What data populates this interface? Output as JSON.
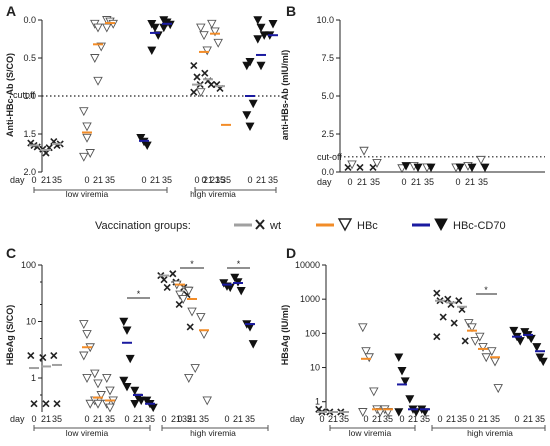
{
  "chart_data": [
    {
      "panel": "A",
      "type": "scatter",
      "ylabel": "Anti-HBc-Ab (S/CO)",
      "y_reversed": true,
      "ylim": [
        0,
        2
      ],
      "yticks": [
        "0.0",
        "0.5",
        "1.0",
        "1.5",
        "2.0"
      ],
      "reference_line": {
        "value": 1.0,
        "label": "cutoff"
      },
      "x_prefix": "day",
      "x_ticks": [
        "0",
        "21",
        "35"
      ],
      "groups": [
        "low viremia",
        "high viremia"
      ],
      "series": [
        {
          "group": "low viremia",
          "vaccine": "wt",
          "day0": [
            1.62,
            1.65,
            1.67
          ],
          "day21": [
            1.7,
            1.75,
            1.68
          ],
          "day35": [
            1.6,
            1.65,
            1.63
          ],
          "mean": [
            1.65,
            1.71,
            1.63
          ]
        },
        {
          "group": "low viremia",
          "vaccine": "HBc",
          "day0": [
            1.2,
            1.55,
            1.75,
            1.8,
            1.4
          ],
          "day21": [
            0.05,
            0.1,
            0.35,
            0.5,
            0.8
          ],
          "day35": [
            0.0,
            0.02,
            0.05,
            0.1
          ],
          "mean": [
            1.48,
            0.32,
            0.04
          ]
        },
        {
          "group": "low viremia",
          "vaccine": "HBc-CD70",
          "day0": [
            1.55,
            1.6,
            1.65
          ],
          "day21": [
            0.05,
            0.1,
            0.2,
            0.4
          ],
          "day35": [
            0.0,
            0.03,
            0.06,
            0.1
          ],
          "mean": [
            1.59,
            0.17,
            0.05
          ]
        },
        {
          "group": "high viremia",
          "vaccine": "wt",
          "day0": [
            0.6,
            0.75,
            0.85,
            0.95
          ],
          "day21": [
            0.7,
            0.8,
            0.85
          ],
          "day35": [
            0.85,
            0.9
          ],
          "mean": [
            0.85,
            0.78,
            0.87
          ]
        },
        {
          "group": "high viremia",
          "vaccine": "HBc",
          "day0": [
            0.1,
            0.2,
            0.4,
            0.95
          ],
          "day21": [
            0.05,
            0.15,
            0.3
          ],
          "day35": [],
          "mean": [
            0.42,
            0.18,
            1.38
          ]
        },
        {
          "group": "high viremia",
          "vaccine": "HBc-CD70",
          "day0": [
            0.6,
            0.55,
            1.1,
            1.25,
            1.4
          ],
          "day21": [
            0.0,
            0.1,
            0.2,
            0.25,
            0.6
          ],
          "day35": [
            0.2,
            0.05
          ],
          "mean": [
            1.0,
            0.46,
            0.2
          ]
        }
      ]
    },
    {
      "panel": "B",
      "type": "scatter",
      "ylabel": "anti-HBs-Ab (mIU/ml)",
      "ylim": [
        0,
        10
      ],
      "yticks": [
        "0.0",
        "2.5",
        "5.0",
        "7.5",
        "10.0"
      ],
      "reference_line": {
        "value": 1.0,
        "label": "cut-off"
      },
      "x_prefix": "day",
      "x_ticks": [
        "0",
        "21",
        "35"
      ],
      "points": [
        0.1,
        0.1,
        0.1,
        0.05,
        0.2,
        0.1,
        0.1,
        0.2,
        0.6,
        0.3,
        1.2,
        0.4,
        0.2,
        0.1,
        0.1,
        0.1,
        0.1,
        0.1
      ]
    },
    {
      "panel": "C",
      "type": "scatter",
      "ylabel": "HBeAg (S/CO)",
      "log_scale": true,
      "ylim": [
        0.25,
        100
      ],
      "yticks": [
        "100",
        "10",
        "1"
      ],
      "x_prefix": "day",
      "x_ticks": [
        "0",
        "21",
        "35"
      ],
      "groups": [
        "low viremia",
        "high viremia"
      ],
      "significance_label": "*",
      "series": [
        {
          "group": "low viremia",
          "vaccine": "wt",
          "day0": [
            2.5,
            0.35
          ],
          "day21": [
            2.3,
            0.35
          ],
          "day35": [
            2.5,
            0.35
          ],
          "mean": [
            1.5,
            1.6,
            1.7
          ]
        },
        {
          "group": "low viremia",
          "vaccine": "HBc",
          "day0": [
            9,
            6,
            3.5,
            2.5,
            1.0,
            0.35
          ],
          "day21": [
            1.2,
            0.8,
            0.5,
            0.4,
            0.35
          ],
          "day35": [
            1.0,
            0.6,
            0.4,
            0.35,
            0.3
          ],
          "mean": [
            3.5,
            0.45,
            0.4
          ]
        },
        {
          "group": "low viremia",
          "vaccine": "HBc-CD70",
          "day0": [
            10,
            7,
            2.2,
            0.9,
            0.7
          ],
          "day21": [
            0.6,
            0.45,
            0.4,
            0.35
          ],
          "day35": [
            0.4,
            0.35,
            0.3
          ],
          "mean": [
            4.2,
            0.5,
            0.35
          ]
        },
        {
          "group": "high viremia",
          "vaccine": "wt",
          "day0": [
            65,
            55,
            40
          ],
          "day21": [
            70,
            50,
            20
          ],
          "day35": [
            40,
            30,
            8
          ],
          "mean": [
            65,
            50,
            40
          ]
        },
        {
          "group": "high viremia",
          "vaccine": "HBc",
          "day0": [
            45,
            30,
            25
          ],
          "day21": [
            35,
            15,
            1.5,
            1.0
          ],
          "day35": [
            12,
            6,
            0.4
          ],
          "mean": [
            45,
            25,
            7
          ]
        },
        {
          "group": "high viremia",
          "vaccine": "HBc-CD70",
          "day0": [
            48,
            42,
            40
          ],
          "day21": [
            60,
            50,
            35
          ],
          "day35": [
            9,
            8,
            4
          ],
          "mean": [
            45,
            48,
            9
          ]
        }
      ]
    },
    {
      "panel": "D",
      "type": "scatter",
      "ylabel": "HBsAg (IU/ml)",
      "log_scale": true,
      "ylim": [
        0.5,
        10000
      ],
      "yticks": [
        "10000",
        "1000",
        "100",
        "10",
        "1"
      ],
      "x_prefix": "day",
      "x_ticks": [
        "0",
        "21",
        "35"
      ],
      "groups": [
        "low viremia",
        "high viremia"
      ],
      "significance_label": "*",
      "series": [
        {
          "group": "low viremia",
          "vaccine": "wt",
          "day0": [
            0.6,
            0.5
          ],
          "day21": [
            0.5
          ],
          "day35": [
            0.5
          ],
          "mean": [
            0.5,
            0.5,
            0.5
          ]
        },
        {
          "group": "low viremia",
          "vaccine": "HBc",
          "day0": [
            150,
            30,
            20,
            0.5
          ],
          "day21": [
            2.0,
            0.6,
            0.5
          ],
          "day35": [
            0.6,
            0.5
          ],
          "mean": [
            18,
            0.6,
            0.6
          ]
        },
        {
          "group": "low viremia",
          "vaccine": "HBc-CD70",
          "day0": [
            20,
            8,
            4,
            0.5
          ],
          "day21": [
            1.2,
            0.6,
            0.5
          ],
          "day35": [
            0.6,
            0.5
          ],
          "mean": [
            3.2,
            0.6,
            0.6
          ]
        },
        {
          "group": "high viremia",
          "vaccine": "wt",
          "day0": [
            1500,
            900,
            300,
            80
          ],
          "day21": [
            1000,
            700,
            200
          ],
          "day35": [
            900,
            500,
            60
          ],
          "mean": [
            900,
            800,
            600
          ]
        },
        {
          "group": "high viremia",
          "vaccine": "HBc",
          "day0": [
            200,
            150,
            60
          ],
          "day21": [
            80,
            40,
            20
          ],
          "day35": [
            30,
            15,
            2.5
          ],
          "mean": [
            120,
            35,
            20
          ]
        },
        {
          "group": "high viremia",
          "vaccine": "HBc-CD70",
          "day0": [
            120,
            80,
            60
          ],
          "day21": [
            110,
            90,
            70
          ],
          "day35": [
            40,
            20,
            15
          ],
          "mean": [
            80,
            90,
            30
          ]
        }
      ]
    }
  ],
  "legend": {
    "title": "Vaccination groups:",
    "items": [
      {
        "label": "wt",
        "color": "#a0a0a0",
        "marker": "x"
      },
      {
        "label": "HBc",
        "color": "#f28c28",
        "marker": "open-triangle"
      },
      {
        "label": "HBc-CD70",
        "color": "#1a1aa0",
        "marker": "filled-triangle"
      }
    ]
  },
  "colors": {
    "wt": "#a0a0a0",
    "HBc": "#f28c28",
    "HBc-CD70": "#1a1aa0",
    "axis": "#222222"
  }
}
